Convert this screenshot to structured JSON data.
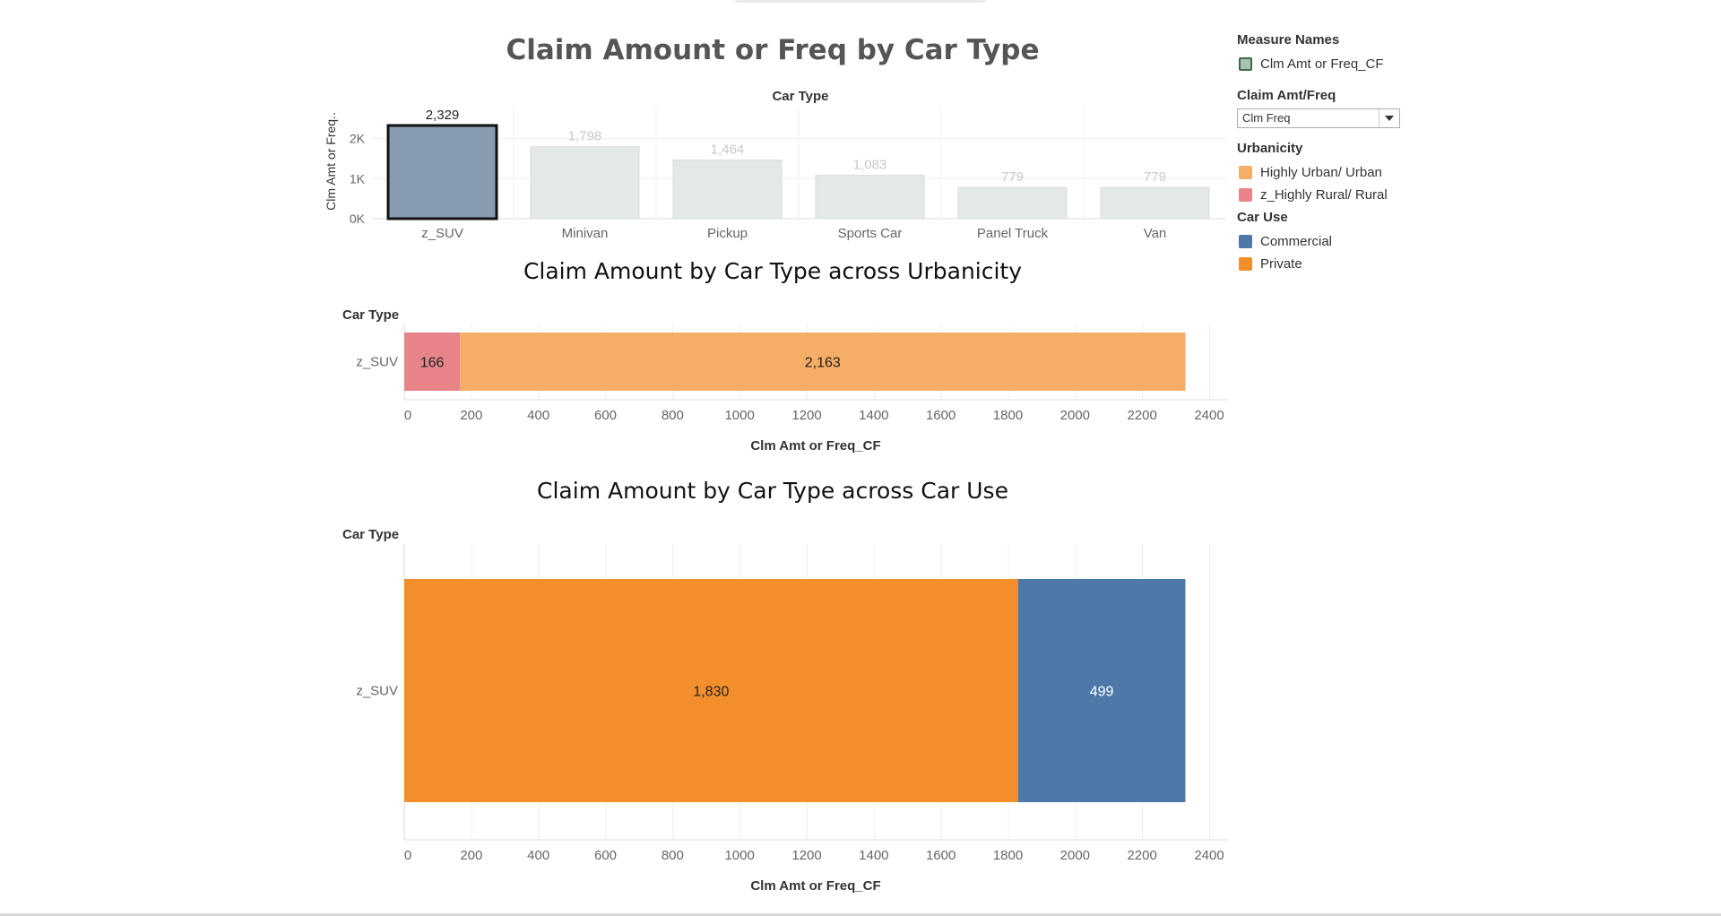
{
  "dashboard": {
    "title": "Claim Amount or Freq by Car Type"
  },
  "legend": {
    "measure_names_title": "Measure Names",
    "measure_names_items": [
      {
        "label": "Clm Amt or Freq_CF",
        "color": "#a8c3ae"
      }
    ],
    "filter_title": "Claim Amt/Freq",
    "filter_value": "Clm Freq",
    "urbanicity_title": "Urbanicity",
    "urbanicity_items": [
      {
        "label": "Highly Urban/ Urban",
        "color": "#f5ad67"
      },
      {
        "label": "z_Highly Rural/ Rural",
        "color": "#e6848a"
      }
    ],
    "car_use_title": "Car Use",
    "car_use_items": [
      {
        "label": "Commercial",
        "color": "#4e78a7"
      },
      {
        "label": "Private",
        "color": "#f28e2c"
      }
    ]
  },
  "chart_data": [
    {
      "type": "bar",
      "title": "Claim Amount or Freq by Car Type",
      "header": "Car Type",
      "ylabel": "Clm Amt or Freq..",
      "categories": [
        "z_SUV",
        "Minivan",
        "Pickup",
        "Sports Car",
        "Panel Truck",
        "Van"
      ],
      "values": [
        2329,
        1798,
        1464,
        1083,
        779,
        779
      ],
      "value_labels": [
        "2,329",
        "1,798",
        "1,464",
        "1,083",
        "779",
        "779"
      ],
      "selected_index": 0,
      "selected_color": "#879cb0",
      "unselected_color": "#e5e8e8",
      "ylim": [
        0,
        2500
      ],
      "yticks": [
        0,
        1000,
        2000
      ],
      "ytick_labels": [
        "0K",
        "1K",
        "2K"
      ],
      "grid": true
    },
    {
      "type": "bar",
      "orientation": "horizontal-stacked",
      "title": "Claim Amount by Car Type across Urbanicity",
      "header": "Car Type",
      "categories": [
        "z_SUV"
      ],
      "series": [
        {
          "name": "z_Highly Rural/ Rural",
          "values": [
            166
          ],
          "labels": [
            "166"
          ],
          "color": "#e6848a"
        },
        {
          "name": "Highly Urban/ Urban",
          "values": [
            2163
          ],
          "labels": [
            "2,163"
          ],
          "color": "#f5ad67"
        }
      ],
      "xlabel": "Clm Amt or Freq_CF",
      "xlim": [
        0,
        2400
      ],
      "xticks": [
        0,
        200,
        400,
        600,
        800,
        1000,
        1200,
        1400,
        1600,
        1800,
        2000,
        2200,
        2400
      ],
      "grid": true
    },
    {
      "type": "bar",
      "orientation": "horizontal-stacked",
      "title": "Claim Amount by Car Type across Car Use",
      "header": "Car Type",
      "categories": [
        "z_SUV"
      ],
      "series": [
        {
          "name": "Private",
          "values": [
            1830
          ],
          "labels": [
            "1,830"
          ],
          "color": "#f28e2c"
        },
        {
          "name": "Commercial",
          "values": [
            499
          ],
          "labels": [
            "499"
          ],
          "color": "#4e78a7"
        }
      ],
      "xlabel": "Clm Amt or Freq_CF",
      "xlim": [
        0,
        2400
      ],
      "xticks": [
        0,
        200,
        400,
        600,
        800,
        1000,
        1200,
        1400,
        1600,
        1800,
        2000,
        2200,
        2400
      ],
      "grid": true
    }
  ]
}
